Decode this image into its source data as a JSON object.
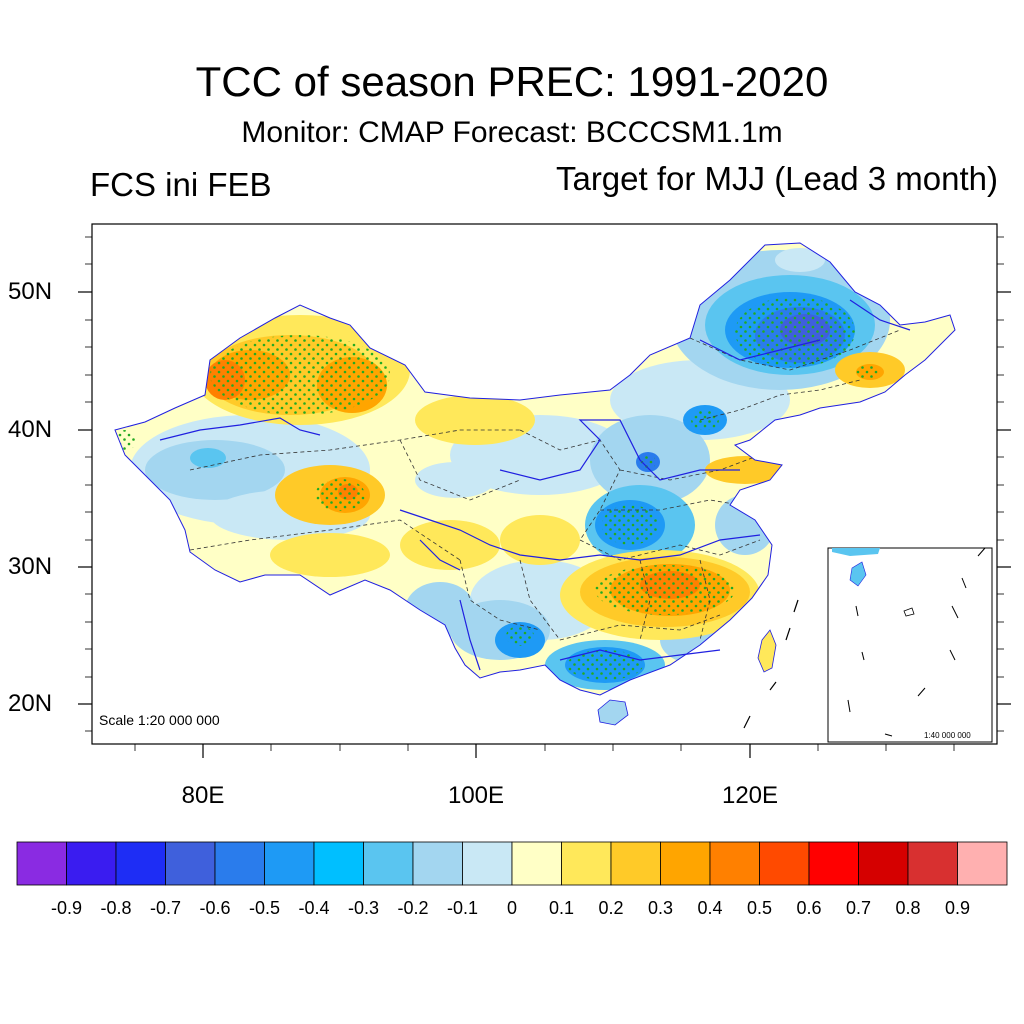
{
  "title": "TCC of season PREC: 1991-2020",
  "subtitle": "Monitor: CMAP   Forecast: BCCCSM1.1m",
  "left_label": "FCS ini FEB",
  "right_label": "Target for MJJ (Lead 3 month)",
  "lat_labels": [
    {
      "text": "50N",
      "lat": 50
    },
    {
      "text": "40N",
      "lat": 40
    },
    {
      "text": "30N",
      "lat": 30
    },
    {
      "text": "20N",
      "lat": 20
    }
  ],
  "lon_labels": [
    {
      "text": "80E",
      "lon": 80
    },
    {
      "text": "100E",
      "lon": 100
    },
    {
      "text": "120E",
      "lon": 120
    }
  ],
  "scale_main": "Scale 1:20 000 000",
  "scale_inset": "1:40 000 000",
  "colorbar": {
    "colors": [
      "#8a2be2",
      "#3a1cf0",
      "#1e2df5",
      "#3f60dc",
      "#2a7cec",
      "#1e9af5",
      "#00bfff",
      "#5ac5f0",
      "#a3d6f0",
      "#c9e8f5",
      "#ffffc6",
      "#ffe85a",
      "#ffca28",
      "#ffa500",
      "#ff8000",
      "#ff4a00",
      "#ff0000",
      "#d50000",
      "#d83030",
      "#ffb0b0"
    ],
    "labels": [
      "-0.9",
      "-0.8",
      "-0.7",
      "-0.6",
      "-0.5",
      "-0.4",
      "-0.3",
      "-0.2",
      "-0.1",
      "0",
      "0.1",
      "0.2",
      "0.3",
      "0.4",
      "0.5",
      "0.6",
      "0.7",
      "0.8",
      "0.9"
    ]
  },
  "colors": {
    "river": "#2020e0",
    "border": "#333333",
    "stipple": "#22aa22",
    "frame": "#000000"
  }
}
